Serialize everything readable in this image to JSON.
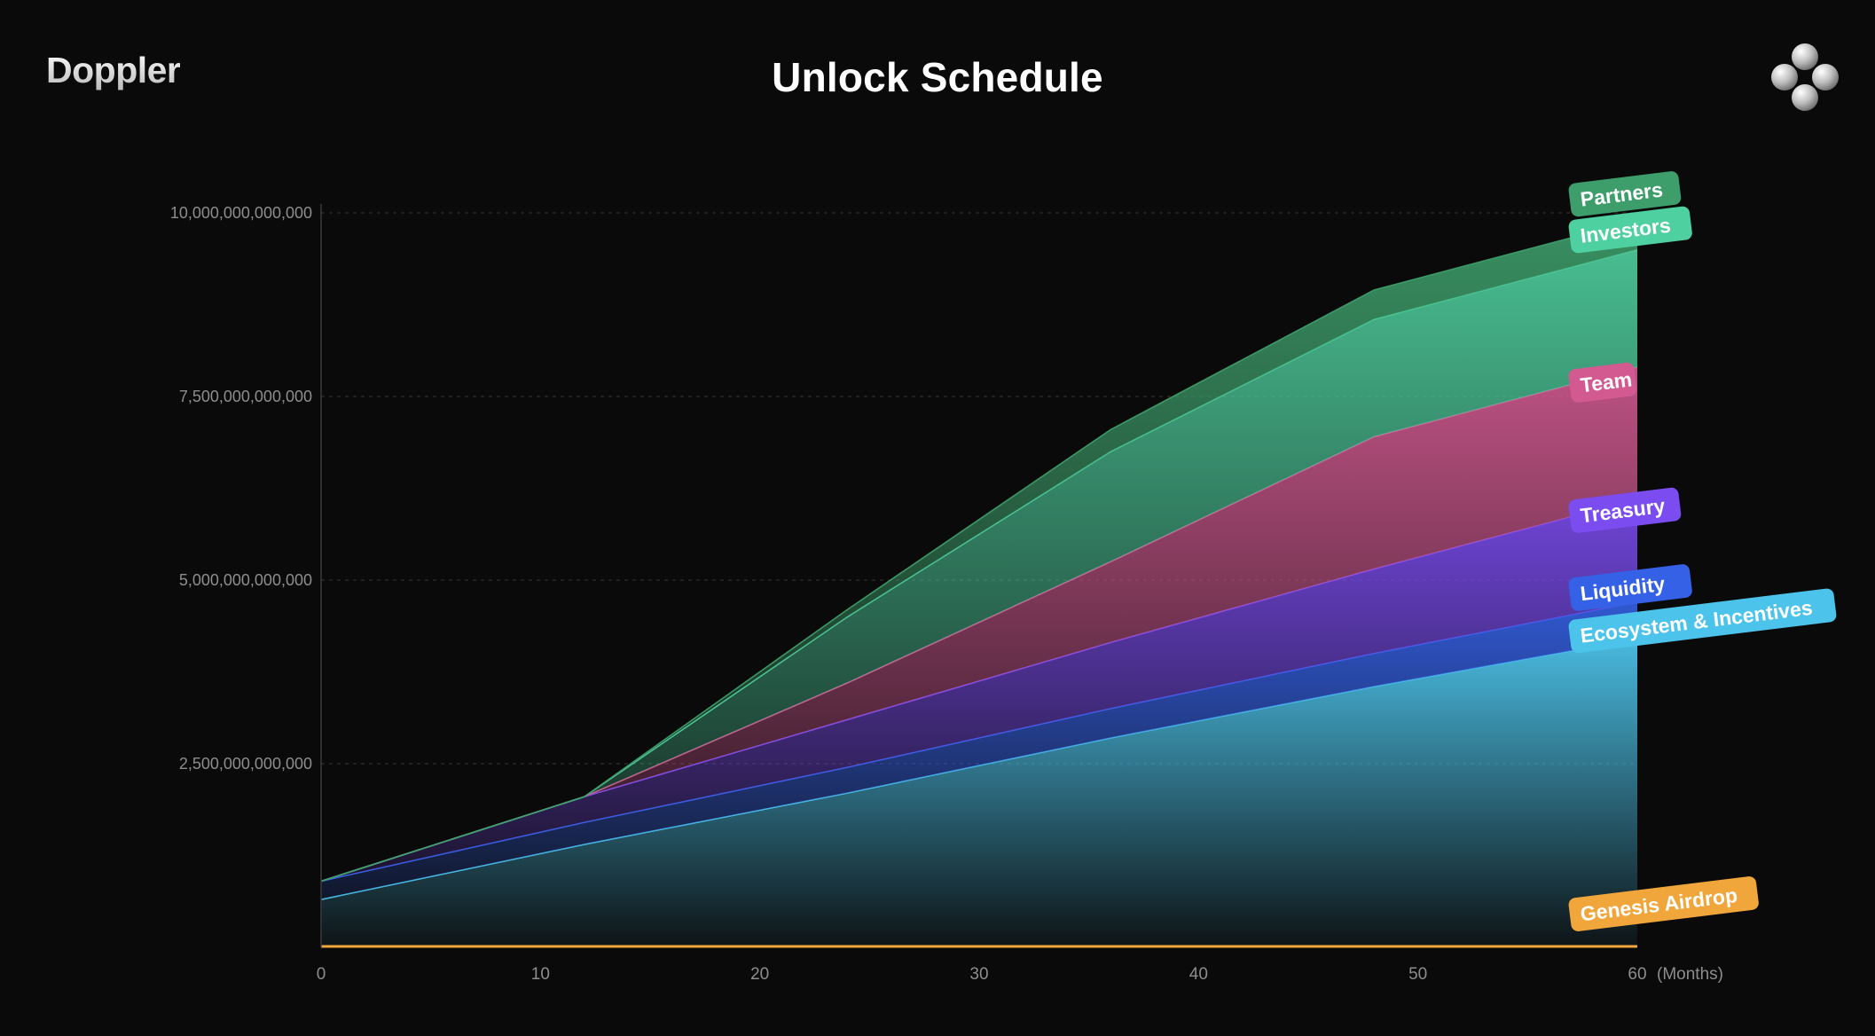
{
  "header": {
    "brand": "Doppler",
    "title": "Unlock Schedule",
    "logo_icon": "four-circles-logo-icon"
  },
  "chart_data": {
    "type": "area",
    "stacked": true,
    "title": "Unlock Schedule",
    "x_unit_label": "(Months)",
    "xlim": [
      0,
      60
    ],
    "ylim": [
      0,
      10000000000000
    ],
    "x_ticks": [
      0,
      10,
      20,
      30,
      40,
      50,
      60
    ],
    "x_tick_labels": [
      "0",
      "10",
      "20",
      "30",
      "40",
      "50",
      "60"
    ],
    "y_ticks": [
      2500000000000,
      5000000000000,
      7500000000000,
      10000000000000
    ],
    "y_tick_labels": [
      "2,500,000,000,000",
      "5,000,000,000,000",
      "7,500,000,000,000",
      "10,000,000,000,000"
    ],
    "grid": true,
    "legend": "inline tags at right edge",
    "series": [
      {
        "name": "Genesis Airdrop",
        "color": "#f0a63a",
        "x": [
          0,
          60
        ],
        "y": [
          0,
          0
        ]
      },
      {
        "name": "Ecosystem & Incentives",
        "color": "#4cc3ea",
        "x": [
          0,
          12,
          24,
          36,
          48,
          60
        ],
        "y": [
          650000000000,
          1400000000000,
          2100000000000,
          2850000000000,
          3550000000000,
          4200000000000
        ]
      },
      {
        "name": "Liquidity",
        "color": "#3561e6",
        "x": [
          0,
          12,
          24,
          36,
          48,
          60
        ],
        "y": [
          250000000000,
          300000000000,
          350000000000,
          400000000000,
          450000000000,
          500000000000
        ]
      },
      {
        "name": "Treasury",
        "color": "#7b4cf0",
        "x": [
          0,
          12,
          24,
          36,
          48,
          60
        ],
        "y": [
          0,
          350000000000,
          650000000000,
          900000000000,
          1150000000000,
          1400000000000
        ]
      },
      {
        "name": "Team",
        "color": "#d25a91",
        "x": [
          0,
          12,
          24,
          36,
          48,
          60
        ],
        "y": [
          0,
          0,
          500000000000,
          1100000000000,
          1800000000000,
          1800000000000
        ]
      },
      {
        "name": "Investors",
        "color": "#4fd0a0",
        "x": [
          0,
          12,
          24,
          36,
          48,
          60
        ],
        "y": [
          0,
          0,
          900000000000,
          1500000000000,
          1600000000000,
          1600000000000
        ]
      },
      {
        "name": "Partners",
        "color": "#3e9e6b",
        "x": [
          0,
          12,
          24,
          36,
          48,
          60
        ],
        "y": [
          0,
          0,
          100000000000,
          300000000000,
          400000000000,
          400000000000
        ]
      }
    ]
  }
}
